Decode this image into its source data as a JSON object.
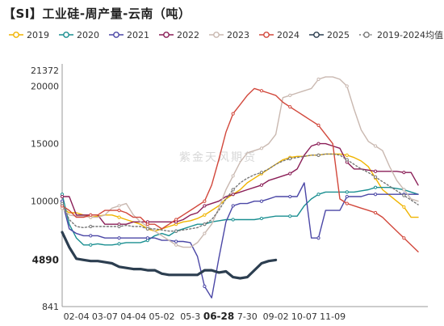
{
  "title": "【SI】工业硅-周产量-云南（吨）",
  "watermark": "紫金天风期货",
  "chart_data": {
    "type": "line",
    "title": "【SI】工业硅-周产量-云南（吨）",
    "xlabel": "",
    "ylabel": "",
    "ylim": [
      841,
      21372
    ],
    "y_ticks": [
      {
        "value": 21372,
        "label": "21372",
        "bold": false
      },
      {
        "value": 20000,
        "label": "20000",
        "bold": false
      },
      {
        "value": 15000,
        "label": "15000",
        "bold": false
      },
      {
        "value": 10000,
        "label": "10000",
        "bold": false
      },
      {
        "value": 4890,
        "label": "4890",
        "bold": true
      },
      {
        "value": 841,
        "label": "841",
        "bold": false
      }
    ],
    "x_ticks": [
      {
        "i": 2,
        "label": "02-04",
        "bold": false
      },
      {
        "i": 6,
        "label": "03-07",
        "bold": false
      },
      {
        "i": 10,
        "label": "04-04",
        "bold": false
      },
      {
        "i": 14,
        "label": "05-02",
        "bold": false
      },
      {
        "i": 18,
        "label": "05-3",
        "bold": false
      },
      {
        "i": 22,
        "label": "06-28",
        "bold": true
      },
      {
        "i": 26,
        "label": "7-30",
        "bold": false
      },
      {
        "i": 30,
        "label": "09-02",
        "bold": false
      },
      {
        "i": 34,
        "label": "10-07",
        "bold": false
      },
      {
        "i": 38,
        "label": "11-09",
        "bold": false
      }
    ],
    "n_points": 51,
    "series": [
      {
        "name": "2019",
        "color": "#f0b400",
        "width": 1.4,
        "dash": "",
        "values": [
          9400,
          9000,
          9000,
          8800,
          8600,
          8700,
          8800,
          8800,
          8600,
          8400,
          8200,
          8000,
          7600,
          7400,
          7600,
          7800,
          8000,
          8200,
          8300,
          8500,
          8800,
          9200,
          9600,
          10200,
          10600,
          11000,
          11600,
          12000,
          12400,
          12800,
          13200,
          13600,
          13800,
          13900,
          13900,
          14000,
          14000,
          14100,
          14100,
          14100,
          14000,
          13800,
          13500,
          13000,
          12000,
          11000,
          10500,
          10000,
          9500,
          8600,
          8600
        ]
      },
      {
        "name": "2020",
        "color": "#1a8f91",
        "width": 1.4,
        "dash": "",
        "values": [
          10600,
          8000,
          6800,
          6200,
          6200,
          6300,
          6200,
          6200,
          6300,
          6400,
          6400,
          6400,
          6600,
          7000,
          7200,
          7000,
          7400,
          7600,
          7800,
          8000,
          8000,
          8200,
          8300,
          8400,
          8400,
          8400,
          8400,
          8400,
          8500,
          8600,
          8700,
          8700,
          8700,
          8700,
          9600,
          10200,
          10600,
          10800,
          10800,
          10800,
          10800,
          10800,
          10900,
          11000,
          11200,
          11200,
          11200,
          11100,
          11000,
          10800,
          10600
        ]
      },
      {
        "name": "2021",
        "color": "#4b47a6",
        "width": 1.4,
        "dash": "",
        "values": [
          10000,
          7600,
          7200,
          7000,
          7000,
          7000,
          6800,
          6800,
          6800,
          6800,
          6800,
          6800,
          6800,
          6800,
          6600,
          6600,
          6500,
          6500,
          6400,
          5200,
          2600,
          1600,
          5000,
          8200,
          9600,
          9800,
          9800,
          10000,
          10000,
          10200,
          10400,
          10400,
          10400,
          10400,
          11600,
          6800,
          6800,
          9200,
          9200,
          9200,
          10400,
          10400,
          10400,
          10600,
          10600,
          10600,
          10600,
          10600,
          10600,
          10600,
          10600
        ]
      },
      {
        "name": "2022",
        "color": "#8a1e57",
        "width": 1.4,
        "dash": "",
        "values": [
          10400,
          10400,
          8800,
          8800,
          8800,
          8800,
          8000,
          8000,
          8000,
          8000,
          8200,
          8200,
          8200,
          8200,
          8200,
          8200,
          8200,
          8400,
          8800,
          9000,
          9600,
          9800,
          10000,
          10400,
          10600,
          10800,
          11000,
          11200,
          11400,
          11800,
          12000,
          12200,
          12400,
          12800,
          14000,
          14800,
          15000,
          15000,
          14800,
          14600,
          13400,
          12800,
          12800,
          12700,
          12600,
          12600,
          12600,
          12600,
          12500,
          12500,
          11400
        ]
      },
      {
        "name": "2023",
        "color": "#c9b8b0",
        "width": 1.4,
        "dash": "",
        "values": [
          9400,
          8800,
          8700,
          8700,
          8600,
          8600,
          8800,
          9400,
          9600,
          9800,
          8800,
          8200,
          7800,
          7400,
          7000,
          6600,
          6200,
          6000,
          6000,
          6400,
          7200,
          8000,
          9400,
          11000,
          12200,
          13400,
          14200,
          14400,
          14600,
          15000,
          15800,
          19000,
          19200,
          19400,
          19600,
          19800,
          20600,
          20800,
          20800,
          20600,
          20000,
          18000,
          16200,
          15200,
          14800,
          14400,
          13000,
          11800,
          11000,
          10200,
          10000
        ]
      },
      {
        "name": "2024",
        "color": "#d2483c",
        "width": 1.4,
        "dash": "",
        "values": [
          9600,
          9200,
          8600,
          8600,
          8800,
          8800,
          9200,
          9200,
          9200,
          9000,
          8600,
          8600,
          8000,
          8000,
          7600,
          8000,
          8400,
          8800,
          9200,
          9600,
          10000,
          11400,
          13600,
          16000,
          17600,
          18400,
          19200,
          19800,
          19600,
          19400,
          19200,
          18600,
          18200,
          17800,
          17400,
          17000,
          16600,
          15800,
          15000,
          10200,
          9800,
          9600,
          9400,
          9200,
          9000,
          8600,
          8000,
          7400,
          6800,
          6200,
          5600
        ]
      },
      {
        "name": "2025",
        "color": "#2c3e50",
        "width": 3.2,
        "dash": "",
        "values": [
          7300,
          6000,
          5000,
          4900,
          4800,
          4800,
          4700,
          4600,
          4300,
          4200,
          4100,
          4100,
          4000,
          4000,
          3700,
          3600,
          3600,
          3600,
          3600,
          3600,
          4000,
          4000,
          3800,
          3900,
          3400,
          3300,
          3400,
          4000,
          4600,
          4800,
          4890,
          null,
          null,
          null,
          null,
          null,
          null,
          null,
          null,
          null,
          null,
          null,
          null,
          null,
          null,
          null,
          null,
          null,
          null,
          null,
          null
        ]
      },
      {
        "name": "2019-2024均值",
        "color": "#777777",
        "width": 1.4,
        "dash": "2,2.5",
        "values": [
          9800,
          8400,
          7800,
          7700,
          7800,
          7800,
          7800,
          7800,
          7800,
          7900,
          7800,
          7800,
          7600,
          7600,
          7500,
          7400,
          7400,
          7500,
          7600,
          7700,
          8000,
          8400,
          9200,
          10200,
          11000,
          11600,
          12000,
          12300,
          12500,
          12800,
          13200,
          13500,
          13700,
          13800,
          13900,
          14000,
          14000,
          14100,
          14100,
          14000,
          13600,
          13200,
          12800,
          12500,
          12100,
          11700,
          11300,
          10900,
          10500,
          10100,
          9700
        ]
      }
    ]
  }
}
